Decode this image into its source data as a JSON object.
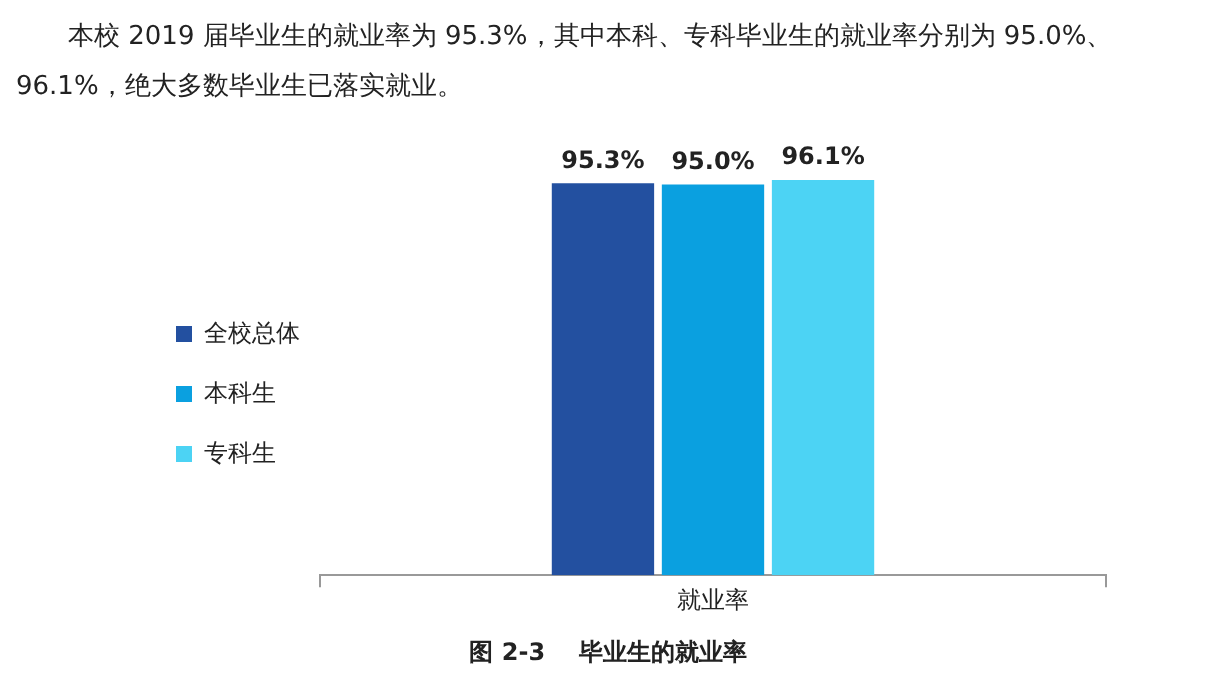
{
  "chart_data": {
    "type": "bar",
    "title": "图 2-3    毕业生的就业率",
    "subtitle": "本校 2019 届毕业生的就业率为 95.3%，其中本科、专科毕业生的就业率分别为 95.0%、96.1%，绝大多数毕业生已落实就业。",
    "xlabel": "就业率",
    "categories": [
      null
    ],
    "series": [
      {
        "name": "全校总体",
        "color": "#2350a0",
        "values": [
          95.3
        ],
        "value_labels": [
          "95.3%"
        ]
      },
      {
        "name": "本科生",
        "color": "#0aa0e0",
        "values": [
          95.0
        ],
        "value_labels": [
          "95.0%"
        ]
      },
      {
        "name": "专科生",
        "color": "#4cd3f4",
        "values": [
          96.1
        ],
        "value_labels": [
          "96.1%"
        ]
      }
    ],
    "tick_labels": false,
    "grid": false,
    "legend": "left"
  }
}
